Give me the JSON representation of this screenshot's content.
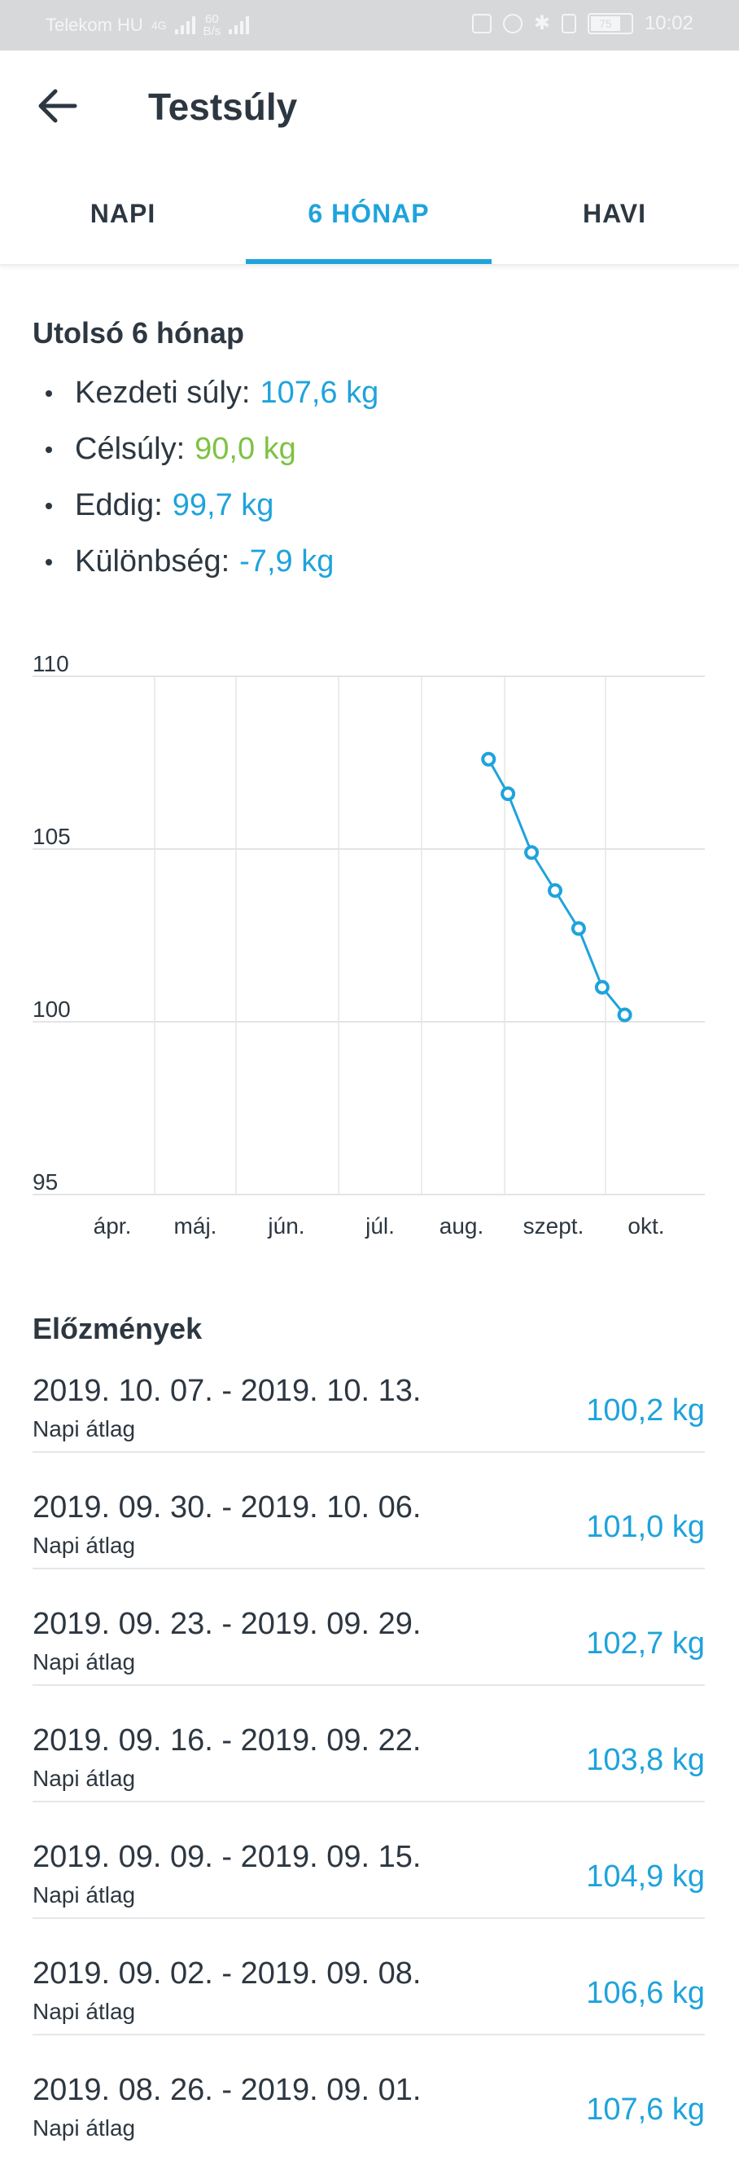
{
  "status_bar": {
    "carrier": "Telekom HU",
    "network": "4G",
    "speed_value": "60",
    "speed_unit": "B/s",
    "battery": "75",
    "time": "10:02"
  },
  "header": {
    "title": "Testsúly"
  },
  "tabs": [
    {
      "label": "NAPI",
      "active": false
    },
    {
      "label": "6 HÓNAP",
      "active": true
    },
    {
      "label": "HAVI",
      "active": false
    }
  ],
  "summary": {
    "title": "Utolsó 6 hónap",
    "items": [
      {
        "label": "Kezdeti súly:",
        "value": "107,6 kg",
        "color": "#1ea3dc"
      },
      {
        "label": "Célsúly:",
        "value": "90,0 kg",
        "color": "#7dc243"
      },
      {
        "label": "Eddig:",
        "value": "99,7 kg",
        "color": "#1ea3dc"
      },
      {
        "label": "Különbség:",
        "value": "-7,9 kg",
        "color": "#1ea3dc"
      }
    ]
  },
  "chart_data": {
    "type": "line",
    "x_categories": [
      "ápr.",
      "máj.",
      "jún.",
      "júl.",
      "aug.",
      "szept.",
      "okt."
    ],
    "y_ticks": [
      "110",
      "105",
      "100",
      "95"
    ],
    "ylim": [
      95,
      110
    ],
    "grid": true,
    "series": [
      {
        "color": "#1ea3dc",
        "points": [
          {
            "x": "2019-08-26",
            "y": 107.6
          },
          {
            "x": "2019-09-02",
            "y": 106.6
          },
          {
            "x": "2019-09-09",
            "y": 104.9
          },
          {
            "x": "2019-09-16",
            "y": 103.8
          },
          {
            "x": "2019-09-23",
            "y": 102.7
          },
          {
            "x": "2019-09-30",
            "y": 101.0
          },
          {
            "x": "2019-10-07",
            "y": 100.2
          }
        ]
      }
    ]
  },
  "history": {
    "title": "Előzmények",
    "rows": [
      {
        "range": "2019. 10. 07. - 2019. 10. 13.",
        "sub": "Napi átlag",
        "value": "100,2 kg"
      },
      {
        "range": "2019. 09. 30. - 2019. 10. 06.",
        "sub": "Napi átlag",
        "value": "101,0 kg"
      },
      {
        "range": "2019. 09. 23. - 2019. 09. 29.",
        "sub": "Napi átlag",
        "value": "102,7 kg"
      },
      {
        "range": "2019. 09. 16. - 2019. 09. 22.",
        "sub": "Napi átlag",
        "value": "103,8 kg"
      },
      {
        "range": "2019. 09. 09. - 2019. 09. 15.",
        "sub": "Napi átlag",
        "value": "104,9 kg"
      },
      {
        "range": "2019. 09. 02. - 2019. 09. 08.",
        "sub": "Napi átlag",
        "value": "106,6 kg"
      },
      {
        "range": "2019. 08. 26. - 2019. 09. 01.",
        "sub": "Napi átlag",
        "value": "107,6 kg"
      }
    ]
  },
  "icons": {
    "back": "arrow-left-icon"
  }
}
